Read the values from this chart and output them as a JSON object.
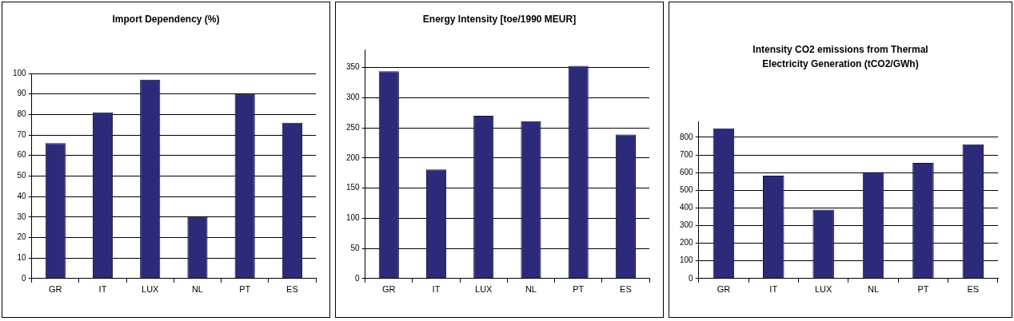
{
  "chart_data": [
    {
      "type": "bar",
      "title": "Import Dependency (%)",
      "categories": [
        "GR",
        "IT",
        "LUX",
        "NL",
        "PT",
        "ES"
      ],
      "values": [
        66,
        81,
        97,
        30,
        90,
        76
      ],
      "color": "#2b2b7a",
      "ylim": [
        0,
        100
      ],
      "yticks": [
        0,
        10,
        20,
        30,
        40,
        50,
        60,
        70,
        80,
        90,
        100
      ],
      "grid": "y",
      "legend": false
    },
    {
      "type": "bar",
      "title": "Energy Intensity [toe/1990 MEUR]",
      "categories": [
        "GR",
        "IT",
        "LUX",
        "NL",
        "PT",
        "ES"
      ],
      "values": [
        344,
        181,
        270,
        261,
        353,
        239
      ],
      "color": "#2b2b7a",
      "ylim": [
        0,
        380
      ],
      "yticks": [
        0,
        50,
        100,
        150,
        200,
        250,
        300,
        350
      ],
      "grid": "y",
      "legend": false
    },
    {
      "type": "bar",
      "title": "Intensity CO2 emissions from Thermal Electricity Generation (tCO2/GWh)",
      "categories": [
        "GR",
        "IT",
        "LUX",
        "NL",
        "PT",
        "ES"
      ],
      "values": [
        850,
        583,
        390,
        603,
        655,
        760
      ],
      "color": "#2b2b7a",
      "ylim": [
        0,
        890
      ],
      "yticks": [
        0,
        100,
        200,
        300,
        400,
        500,
        600,
        700,
        800
      ],
      "grid": "y",
      "legend": false
    }
  ]
}
